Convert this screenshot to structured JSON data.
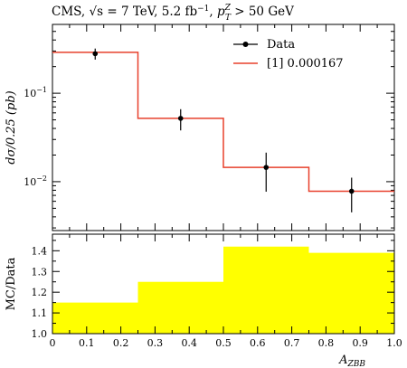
{
  "title": {
    "prefix": "CMS, ",
    "sqrt_s": "√s",
    "energy": " = 7 TeV, 5.2 fb",
    "lumi_exp": "−1",
    "sep": ", ",
    "pt": "p",
    "pt_sup": "Z",
    "pt_sub": "T",
    "cut": " > 50 GeV"
  },
  "top_panel": {
    "ylabel": "dσ/0.25 (pb)",
    "ytick_labels": [
      {
        "base": "10",
        "exp": "−1",
        "value": 0.1
      },
      {
        "base": "10",
        "exp": "−2",
        "value": 0.01
      }
    ]
  },
  "bottom_panel": {
    "ylabel": "MC/Data",
    "ytick_labels": [
      "1.0",
      "1.1",
      "1.2",
      "1.3",
      "1.4"
    ]
  },
  "legend": {
    "data_label": "Data",
    "mc_label": "[1] 0.000167",
    "placement": "top-right"
  },
  "xlabel": {
    "main": "A",
    "sub": "ZBB"
  },
  "xtick_labels": [
    "0",
    "0.1",
    "0.2",
    "0.3",
    "0.4",
    "0.5",
    "0.6",
    "0.7",
    "0.8",
    "0.9",
    "1.0"
  ],
  "colors": {
    "mc_line": "#e8402c",
    "ratio_band": "#ffff00",
    "data": "#000000"
  },
  "chart_data": [
    {
      "type": "line",
      "yscale": "log",
      "xlim": [
        0,
        1.0
      ],
      "ylim": [
        0.0028,
        0.6
      ],
      "bin_edges": [
        0,
        0.25,
        0.5,
        0.75,
        1.0
      ],
      "series": [
        {
          "name": "Data",
          "x": [
            0.125,
            0.375,
            0.625,
            0.875
          ],
          "y": [
            0.28,
            0.052,
            0.0145,
            0.0078
          ],
          "yerr_low": [
            0.04,
            0.014,
            0.0068,
            0.0033
          ],
          "yerr_high": [
            0.04,
            0.014,
            0.0068,
            0.0033
          ]
        },
        {
          "name": "[1] 0.000167",
          "values": [
            0.29,
            0.052,
            0.0145,
            0.0078
          ]
        }
      ]
    },
    {
      "type": "area",
      "xlim": [
        0,
        1.0
      ],
      "ylim": [
        1.0,
        1.48
      ],
      "bin_edges": [
        0,
        0.25,
        0.5,
        0.75,
        1.0
      ],
      "values": [
        1.15,
        1.25,
        1.42,
        1.39
      ]
    }
  ]
}
